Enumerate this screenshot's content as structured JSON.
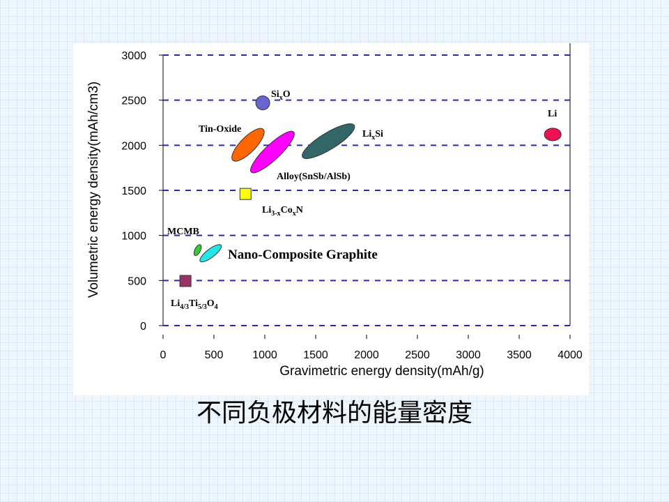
{
  "chart_data": {
    "type": "scatter",
    "x_label": "Gravimetric energy density(mAh/g)",
    "y_label": "Volumetric energy density(mAh/cm3)",
    "xlim": [
      0,
      4000
    ],
    "ylim": [
      0,
      3000
    ],
    "xticks": [
      0,
      500,
      1000,
      1500,
      2000,
      2500,
      3000,
      3500,
      4000
    ],
    "yticks": [
      0,
      500,
      1000,
      1500,
      2000,
      2500,
      3000
    ],
    "grid": true,
    "points": [
      {
        "label": [
          "Si",
          "x",
          "O"
        ],
        "shape": "circle",
        "x": 980,
        "y": 2470,
        "color": "#6666cc"
      },
      {
        "label": [
          "Tin-Oxide"
        ],
        "shape": "ellipse",
        "x": [
          670,
          1000
        ],
        "y": [
          1815,
          2195
        ],
        "color": "#ff6600"
      },
      {
        "label": [
          "Alloy(SnSb/AlSb)"
        ],
        "shape": "ellipse",
        "x": [
          850,
          1300
        ],
        "y": [
          1685,
          2165
        ],
        "color": "#ff00ff"
      },
      {
        "label": [
          "Li",
          "x",
          "Si"
        ],
        "shape": "ellipse",
        "x": [
          1350,
          1900
        ],
        "y": [
          1855,
          2235
        ],
        "color": "#336666"
      },
      {
        "label": [
          "Li"
        ],
        "shape": "oval",
        "x": 3830,
        "y": 2120,
        "color": "#ee1155"
      },
      {
        "label": [
          "Li",
          "3-x",
          "Co",
          "x",
          "N"
        ],
        "shape": "square",
        "x": 810,
        "y": 1460,
        "color": "#ffff00"
      },
      {
        "label": [
          "MCMB"
        ],
        "shape": "ellipse",
        "x": [
          310,
          370
        ],
        "y": [
          770,
          905
        ],
        "color": "#33cc33"
      },
      {
        "label": [
          "Nano-Composite Graphite"
        ],
        "shape": "ellipse",
        "x": [
          355,
          580
        ],
        "y": [
          705,
          900
        ],
        "color": "#22e6e6",
        "label_color": "#e0202a"
      },
      {
        "label": [
          "Li",
          "4/3",
          "Ti",
          "5/3",
          "O",
          "4"
        ],
        "shape": "square",
        "x": 220,
        "y": 495,
        "color": "#993366"
      }
    ]
  },
  "caption": "不同负极材料的能量密度"
}
